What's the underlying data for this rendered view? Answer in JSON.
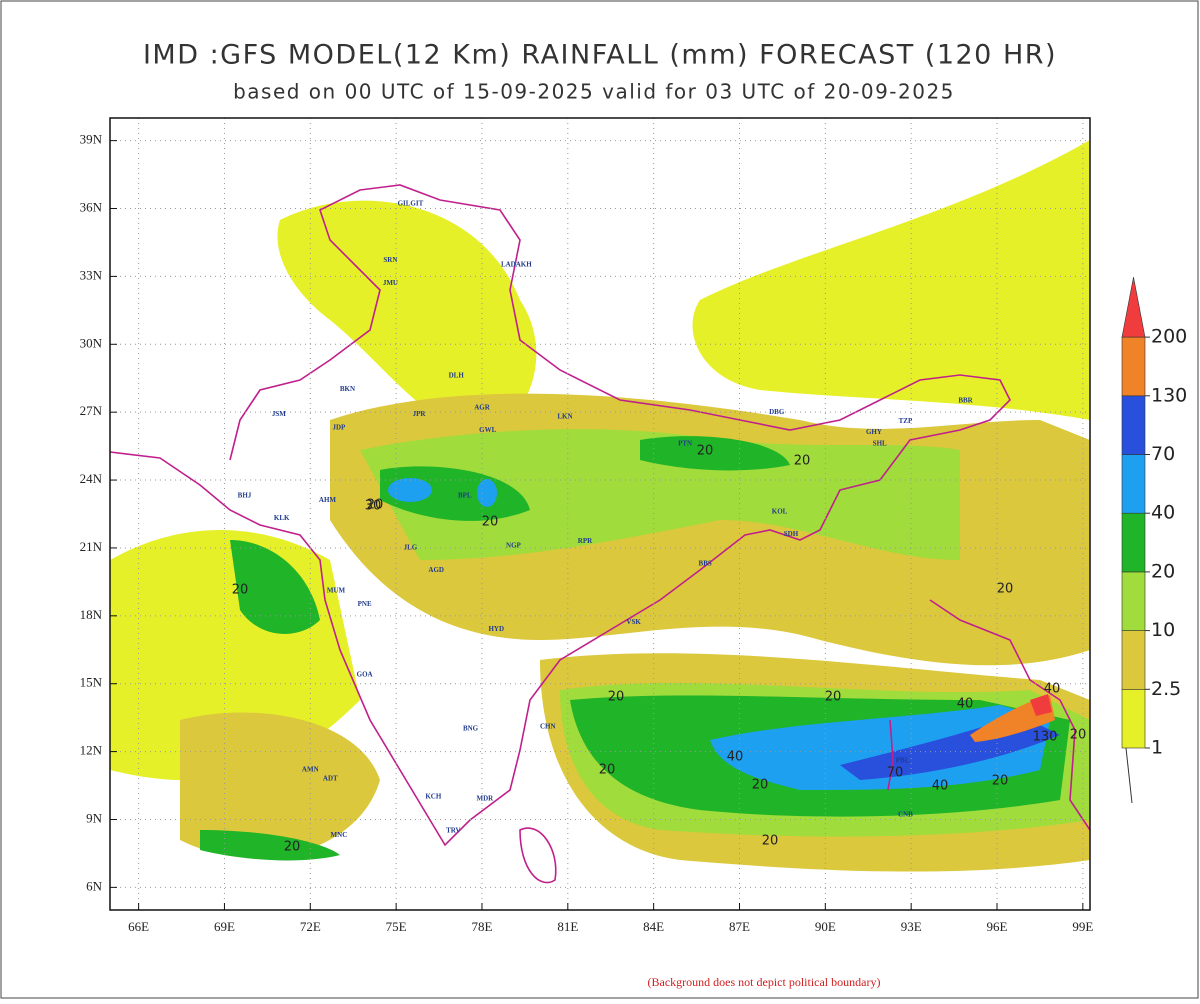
{
  "map": {
    "title": "IMD :GFS MODEL(12 Km) RAINFALL (mm) FORECAST (120 HR)",
    "subtitle": "based on 00 UTC of 15-09-2025 valid for 03 UTC of 20-09-2025",
    "xlim": [
      65,
      99.25
    ],
    "ylim": [
      5,
      40
    ],
    "xticks": [
      {
        "value": 66,
        "label": "66E"
      },
      {
        "value": 69,
        "label": "69E"
      },
      {
        "value": 72,
        "label": "72E"
      },
      {
        "value": 75,
        "label": "75E"
      },
      {
        "value": 78,
        "label": "78E"
      },
      {
        "value": 81,
        "label": "81E"
      },
      {
        "value": 84,
        "label": "84E"
      },
      {
        "value": 87,
        "label": "87E"
      },
      {
        "value": 90,
        "label": "90E"
      },
      {
        "value": 93,
        "label": "93E"
      },
      {
        "value": 96,
        "label": "96E"
      },
      {
        "value": 99,
        "label": "99E"
      }
    ],
    "yticks": [
      {
        "value": 6,
        "label": "6N"
      },
      {
        "value": 9,
        "label": "9N"
      },
      {
        "value": 12,
        "label": "12N"
      },
      {
        "value": 15,
        "label": "15N"
      },
      {
        "value": 18,
        "label": "18N"
      },
      {
        "value": 21,
        "label": "21N"
      },
      {
        "value": 24,
        "label": "24N"
      },
      {
        "value": 27,
        "label": "27N"
      },
      {
        "value": 30,
        "label": "30N"
      },
      {
        "value": 33,
        "label": "33N"
      },
      {
        "value": 36,
        "label": "36N"
      },
      {
        "value": 39,
        "label": "39N"
      }
    ],
    "grid": true,
    "legend": {
      "levels": [
        {
          "value": 1,
          "label": "1"
        },
        {
          "value": 2.5,
          "label": "2.5"
        },
        {
          "value": 10,
          "label": "10"
        },
        {
          "value": 20,
          "label": "20"
        },
        {
          "value": 40,
          "label": "40"
        },
        {
          "value": 70,
          "label": "70"
        },
        {
          "value": 130,
          "label": "130"
        },
        {
          "value": 200,
          "label": "200"
        }
      ],
      "colors": [
        "#e6f028",
        "#dcc83c",
        "#a0dc3c",
        "#20b428",
        "#1ea0f0",
        "#2850dc",
        "#f08228",
        "#f03c3c"
      ]
    },
    "contour_labels": [
      "20",
      "20",
      "20",
      "20",
      "20",
      "30",
      "20",
      "40",
      "20",
      "40",
      "20",
      "20",
      "20",
      "40",
      "70",
      "130",
      "40",
      "20",
      "20",
      "20",
      "20"
    ],
    "stations": [
      "GILGIT",
      "LADAKH",
      "SRN",
      "JMU",
      "DLH",
      "BKN",
      "JSM",
      "JDP",
      "JPR",
      "AGR",
      "LKN",
      "PTN",
      "GWL",
      "BPL",
      "AHM",
      "BHJ",
      "KLK",
      "JLG",
      "AGD",
      "NGP",
      "RPR",
      "BBS",
      "KOL",
      "SDH",
      "GHY",
      "MUM",
      "PNE",
      "HYD",
      "VSK",
      "GOA",
      "BNG",
      "CHN",
      "TRV",
      "MDR",
      "KCH",
      "ADT",
      "AMN",
      "MNC",
      "PBL",
      "CNB",
      "SHL",
      "TZP",
      "BBR",
      "DBG"
    ],
    "note": "(Background does not depict political boundary)"
  }
}
